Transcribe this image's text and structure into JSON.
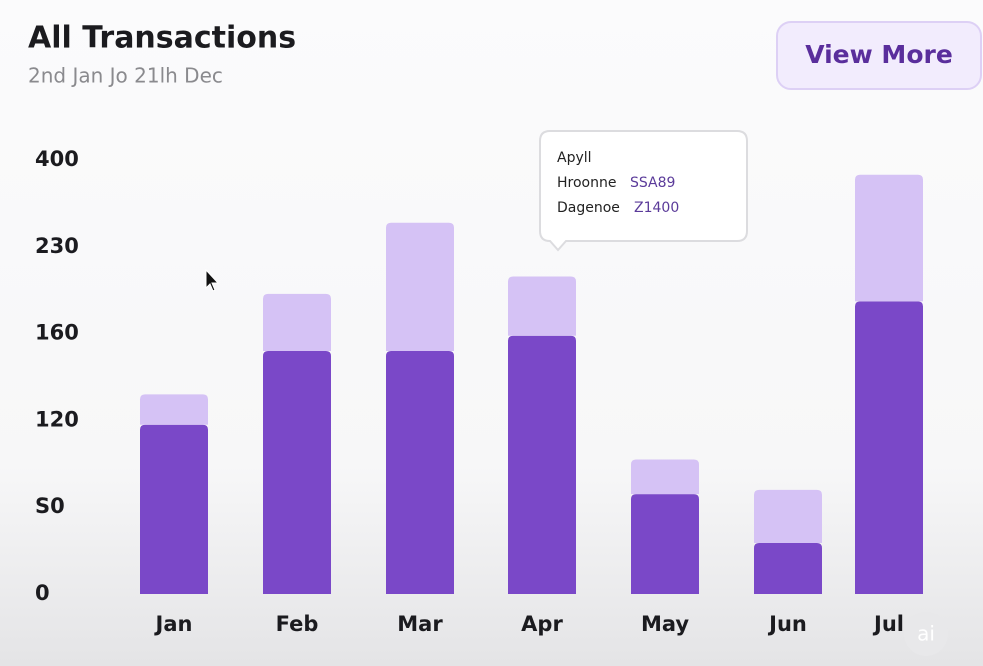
{
  "header": {
    "title": "All Transactions",
    "subtitle": "2nd Jan Jo 21lh Dec",
    "button": "View More"
  },
  "chart_data": {
    "type": "stacked-bar",
    "categories": [
      "Jan",
      "Feb",
      "Mar",
      "Apr",
      "May",
      "Jun",
      "Jul"
    ],
    "series": [
      {
        "color": "#7a48c8",
        "values": [
          118,
          152,
          152,
          159,
          86,
          47,
          186
        ]
      },
      {
        "color": "#d5c2f5",
        "values": [
          14,
          40,
          125,
          47,
          16,
          41,
          185
        ]
      }
    ],
    "ylim": [
      0,
      400
    ],
    "yticks": [
      0,
      {
        "value": 80,
        "label": "S0"
      },
      120,
      160,
      230,
      400
    ],
    "grid": false
  },
  "tooltip": {
    "title": "Apyll",
    "rows": [
      [
        "Hroonne",
        "SSA89"
      ],
      [
        "Dagenoe",
        "Z1400"
      ]
    ]
  },
  "badge": "ai"
}
